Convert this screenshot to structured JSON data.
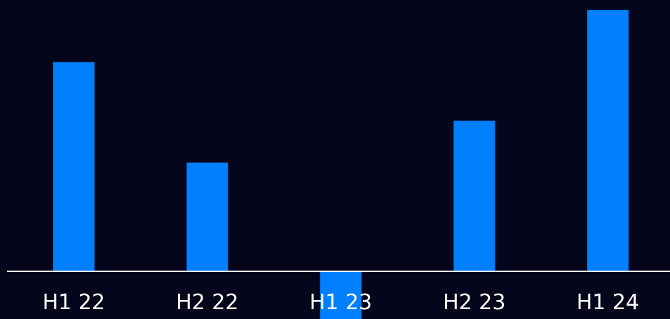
{
  "chart_data": {
    "type": "bar",
    "categories": [
      "H1 22",
      "H2 22",
      "H1 23",
      "H2 23",
      "H1 24"
    ],
    "values": [
      100,
      52,
      -23,
      72,
      125
    ],
    "title": "",
    "xlabel": "",
    "ylabel": "",
    "ylim": [
      -23,
      125
    ],
    "grid": false,
    "legend": "none",
    "colors": {
      "background": "#05061c",
      "bar": "#0080ff",
      "axis": "#ffffff",
      "text": "#ffffff"
    }
  }
}
